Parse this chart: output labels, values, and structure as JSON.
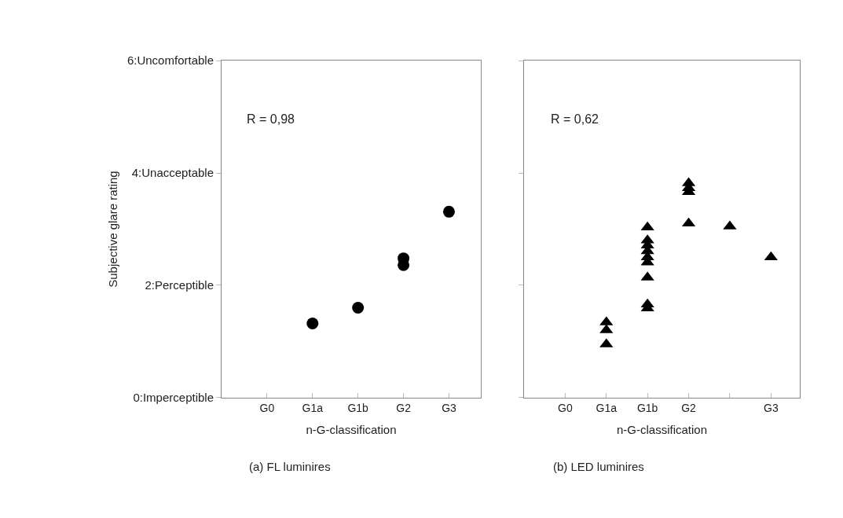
{
  "chart_data": [
    {
      "type": "scatter",
      "title": "(a) FL luminires",
      "xlabel": "n-G-classification",
      "ylabel": "Subjective glare rating",
      "annotations": [
        "R = 0,98"
      ],
      "marker": "circle",
      "categories": [
        "G0",
        "G1a",
        "G1b",
        "G2",
        "G3"
      ],
      "ylim": [
        0,
        6
      ],
      "yticks": [
        {
          "value": 0,
          "label": "0:Imperceptible"
        },
        {
          "value": 2,
          "label": "2:Perceptible"
        },
        {
          "value": 4,
          "label": "4:Unacceptable"
        },
        {
          "value": 6,
          "label": "6:Uncomfortable"
        }
      ],
      "series": [
        {
          "color": "#000000",
          "values": [
            null,
            1.32,
            1.6,
            2.48,
            3.31
          ]
        },
        {
          "color": "#000000",
          "values": [
            null,
            null,
            null,
            2.36,
            null
          ]
        }
      ]
    },
    {
      "type": "scatter",
      "title": "(b) LED luminires",
      "xlabel": "n-G-classification",
      "annotations": [
        "R = 0,62"
      ],
      "marker": "triangle",
      "tick_labels": "x",
      "categories": [
        "G0",
        "G1a",
        "G1b",
        "G2",
        null,
        "G3"
      ],
      "ylim": [
        0,
        6
      ],
      "yticks": [
        0,
        2,
        4,
        6
      ],
      "series": [
        {
          "color": "#000000",
          "values": [
            null,
            1.34,
            3.03,
            3.82,
            3.05,
            2.5
          ]
        },
        {
          "color": "#000000",
          "values": [
            null,
            1.2,
            2.8,
            3.73,
            null,
            null
          ]
        },
        {
          "color": "#000000",
          "values": [
            null,
            0.95,
            2.71,
            3.66,
            null,
            null
          ]
        },
        {
          "color": "#000000",
          "values": [
            null,
            null,
            2.61,
            3.1,
            null,
            null
          ]
        },
        {
          "color": "#000000",
          "values": [
            null,
            null,
            2.5,
            null,
            null,
            null
          ]
        },
        {
          "color": "#000000",
          "values": [
            null,
            null,
            2.41,
            null,
            null,
            null
          ]
        },
        {
          "color": "#000000",
          "values": [
            null,
            null,
            2.14,
            null,
            null,
            null
          ]
        },
        {
          "color": "#000000",
          "values": [
            null,
            null,
            1.66,
            null,
            null,
            null
          ]
        },
        {
          "color": "#000000",
          "values": [
            null,
            null,
            1.59,
            null,
            null,
            null
          ]
        }
      ]
    }
  ]
}
